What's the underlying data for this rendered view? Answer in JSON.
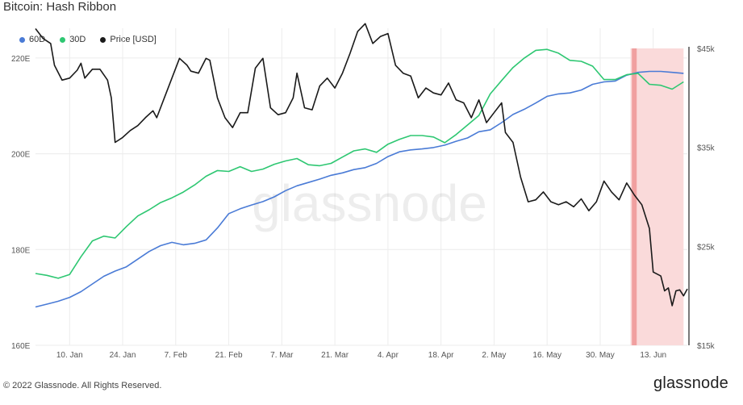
{
  "title": "Bitcoin: Hash Ribbon",
  "footer": {
    "copyright": "© 2022 Glassnode. All Rights Reserved.",
    "brand": "glassnode"
  },
  "watermark": "glassnode",
  "chart_data": {
    "type": "line",
    "title": "Bitcoin: Hash Ribbon",
    "x_start": "2022-01-01",
    "x_end": "2022-06-22",
    "x_ticks": [
      {
        "date": "2022-01-10",
        "label": "10. Jan"
      },
      {
        "date": "2022-01-24",
        "label": "24. Jan"
      },
      {
        "date": "2022-02-07",
        "label": "7. Feb"
      },
      {
        "date": "2022-02-21",
        "label": "21. Feb"
      },
      {
        "date": "2022-03-07",
        "label": "7. Mar"
      },
      {
        "date": "2022-03-21",
        "label": "21. Mar"
      },
      {
        "date": "2022-04-04",
        "label": "4. Apr"
      },
      {
        "date": "2022-04-18",
        "label": "18. Apr"
      },
      {
        "date": "2022-05-02",
        "label": "2. May"
      },
      {
        "date": "2022-05-16",
        "label": "16. May"
      },
      {
        "date": "2022-05-30",
        "label": "30. May"
      },
      {
        "date": "2022-06-13",
        "label": "13. Jun"
      }
    ],
    "y_left": {
      "ylim": [
        160,
        222
      ],
      "ticks": [
        {
          "v": 160,
          "label": "160E"
        },
        {
          "v": 180,
          "label": "180E"
        },
        {
          "v": 200,
          "label": "200E"
        },
        {
          "v": 220,
          "label": "220E"
        }
      ]
    },
    "y_right": {
      "ylim": [
        15,
        45
      ],
      "ticks": [
        {
          "v": 15,
          "label": "$15k"
        },
        {
          "v": 25,
          "label": "$25k"
        },
        {
          "v": 35,
          "label": "$35k"
        },
        {
          "v": 45,
          "label": "$45k"
        }
      ]
    },
    "grid": true,
    "legend_position": "top-left",
    "capitulation_band": {
      "start": "2022-06-07",
      "end": "2022-06-21",
      "color": "#fadada"
    },
    "capitulation_line": {
      "date": "2022-06-08",
      "color": "#f0a0a0"
    },
    "series": [
      {
        "name": "60D",
        "axis": "left",
        "color": "#4a7bd6",
        "points": [
          [
            "2022-01-01",
            168.0
          ],
          [
            "2022-01-04",
            168.6
          ],
          [
            "2022-01-07",
            169.2
          ],
          [
            "2022-01-10",
            170.0
          ],
          [
            "2022-01-13",
            171.2
          ],
          [
            "2022-01-16",
            172.8
          ],
          [
            "2022-01-19",
            174.4
          ],
          [
            "2022-01-22",
            175.5
          ],
          [
            "2022-01-25",
            176.4
          ],
          [
            "2022-01-28",
            178.0
          ],
          [
            "2022-01-31",
            179.6
          ],
          [
            "2022-02-03",
            180.8
          ],
          [
            "2022-02-06",
            181.5
          ],
          [
            "2022-02-09",
            181.0
          ],
          [
            "2022-02-12",
            181.3
          ],
          [
            "2022-02-15",
            182.0
          ],
          [
            "2022-02-18",
            184.5
          ],
          [
            "2022-02-21",
            187.5
          ],
          [
            "2022-02-24",
            188.5
          ],
          [
            "2022-02-27",
            189.3
          ],
          [
            "2022-03-02",
            190.0
          ],
          [
            "2022-03-05",
            191.0
          ],
          [
            "2022-03-08",
            192.3
          ],
          [
            "2022-03-11",
            193.3
          ],
          [
            "2022-03-14",
            194.0
          ],
          [
            "2022-03-17",
            194.7
          ],
          [
            "2022-03-20",
            195.5
          ],
          [
            "2022-03-23",
            196.0
          ],
          [
            "2022-03-26",
            196.7
          ],
          [
            "2022-03-29",
            197.1
          ],
          [
            "2022-04-01",
            198.0
          ],
          [
            "2022-04-04",
            199.4
          ],
          [
            "2022-04-07",
            200.4
          ],
          [
            "2022-04-10",
            200.8
          ],
          [
            "2022-04-13",
            201.0
          ],
          [
            "2022-04-16",
            201.3
          ],
          [
            "2022-04-19",
            201.8
          ],
          [
            "2022-04-22",
            202.6
          ],
          [
            "2022-04-25",
            203.3
          ],
          [
            "2022-04-28",
            204.6
          ],
          [
            "2022-05-01",
            205.0
          ],
          [
            "2022-05-04",
            206.5
          ],
          [
            "2022-05-07",
            208.2
          ],
          [
            "2022-05-10",
            209.3
          ],
          [
            "2022-05-13",
            210.6
          ],
          [
            "2022-05-16",
            212.0
          ],
          [
            "2022-05-19",
            212.5
          ],
          [
            "2022-05-22",
            212.7
          ],
          [
            "2022-05-25",
            213.3
          ],
          [
            "2022-05-28",
            214.5
          ],
          [
            "2022-05-31",
            215.0
          ],
          [
            "2022-06-03",
            215.2
          ],
          [
            "2022-06-06",
            216.4
          ],
          [
            "2022-06-09",
            217.0
          ],
          [
            "2022-06-12",
            217.2
          ],
          [
            "2022-06-15",
            217.2
          ],
          [
            "2022-06-18",
            217.0
          ],
          [
            "2022-06-21",
            216.8
          ]
        ]
      },
      {
        "name": "30D",
        "axis": "left",
        "color": "#2ec772",
        "points": [
          [
            "2022-01-01",
            175.0
          ],
          [
            "2022-01-04",
            174.6
          ],
          [
            "2022-01-07",
            174.0
          ],
          [
            "2022-01-10",
            174.8
          ],
          [
            "2022-01-13",
            178.5
          ],
          [
            "2022-01-16",
            181.8
          ],
          [
            "2022-01-19",
            182.8
          ],
          [
            "2022-01-22",
            182.4
          ],
          [
            "2022-01-25",
            184.8
          ],
          [
            "2022-01-28",
            187.0
          ],
          [
            "2022-01-31",
            188.3
          ],
          [
            "2022-02-03",
            189.8
          ],
          [
            "2022-02-06",
            190.8
          ],
          [
            "2022-02-09",
            192.0
          ],
          [
            "2022-02-12",
            193.5
          ],
          [
            "2022-02-15",
            195.3
          ],
          [
            "2022-02-18",
            196.5
          ],
          [
            "2022-02-21",
            196.3
          ],
          [
            "2022-02-24",
            197.3
          ],
          [
            "2022-02-27",
            196.3
          ],
          [
            "2022-03-02",
            196.8
          ],
          [
            "2022-03-05",
            197.8
          ],
          [
            "2022-03-08",
            198.5
          ],
          [
            "2022-03-11",
            199.0
          ],
          [
            "2022-03-14",
            197.7
          ],
          [
            "2022-03-17",
            197.5
          ],
          [
            "2022-03-20",
            198.0
          ],
          [
            "2022-03-23",
            199.3
          ],
          [
            "2022-03-26",
            200.6
          ],
          [
            "2022-03-29",
            201.0
          ],
          [
            "2022-04-01",
            200.3
          ],
          [
            "2022-04-04",
            202.0
          ],
          [
            "2022-04-07",
            203.0
          ],
          [
            "2022-04-10",
            203.8
          ],
          [
            "2022-04-13",
            203.8
          ],
          [
            "2022-04-16",
            203.5
          ],
          [
            "2022-04-19",
            202.3
          ],
          [
            "2022-04-22",
            204.0
          ],
          [
            "2022-04-25",
            206.0
          ],
          [
            "2022-04-28",
            208.0
          ],
          [
            "2022-05-01",
            212.5
          ],
          [
            "2022-05-04",
            215.3
          ],
          [
            "2022-05-07",
            218.0
          ],
          [
            "2022-05-10",
            220.0
          ],
          [
            "2022-05-13",
            221.6
          ],
          [
            "2022-05-16",
            221.8
          ],
          [
            "2022-05-19",
            221.0
          ],
          [
            "2022-05-22",
            219.5
          ],
          [
            "2022-05-25",
            219.3
          ],
          [
            "2022-05-28",
            218.3
          ],
          [
            "2022-05-31",
            215.5
          ],
          [
            "2022-06-03",
            215.5
          ],
          [
            "2022-06-06",
            216.5
          ],
          [
            "2022-06-09",
            216.8
          ],
          [
            "2022-06-12",
            214.5
          ],
          [
            "2022-06-15",
            214.3
          ],
          [
            "2022-06-18",
            213.5
          ],
          [
            "2022-06-21",
            215.0
          ]
        ]
      },
      {
        "name": "Price [USD]",
        "axis": "right",
        "color": "#1a1a1a",
        "points": [
          [
            "2022-01-01",
            47.0
          ],
          [
            "2022-01-02",
            46.5
          ],
          [
            "2022-01-03",
            46.0
          ],
          [
            "2022-01-05",
            45.5
          ],
          [
            "2022-01-06",
            43.3
          ],
          [
            "2022-01-08",
            41.8
          ],
          [
            "2022-01-10",
            42.0
          ],
          [
            "2022-01-12",
            42.8
          ],
          [
            "2022-01-13",
            43.5
          ],
          [
            "2022-01-14",
            42.0
          ],
          [
            "2022-01-16",
            42.9
          ],
          [
            "2022-01-18",
            42.9
          ],
          [
            "2022-01-20",
            41.8
          ],
          [
            "2022-01-21",
            40.0
          ],
          [
            "2022-01-22",
            35.5
          ],
          [
            "2022-01-24",
            36.0
          ],
          [
            "2022-01-26",
            36.7
          ],
          [
            "2022-01-28",
            37.2
          ],
          [
            "2022-01-30",
            38.0
          ],
          [
            "2022-02-01",
            38.7
          ],
          [
            "2022-02-02",
            38.0
          ],
          [
            "2022-02-04",
            40.0
          ],
          [
            "2022-02-06",
            42.0
          ],
          [
            "2022-02-08",
            44.0
          ],
          [
            "2022-02-10",
            43.3
          ],
          [
            "2022-02-11",
            42.7
          ],
          [
            "2022-02-13",
            42.5
          ],
          [
            "2022-02-15",
            44.0
          ],
          [
            "2022-02-16",
            43.8
          ],
          [
            "2022-02-18",
            40.0
          ],
          [
            "2022-02-20",
            38.0
          ],
          [
            "2022-02-22",
            37.0
          ],
          [
            "2022-02-24",
            38.5
          ],
          [
            "2022-02-26",
            38.5
          ],
          [
            "2022-02-28",
            43.0
          ],
          [
            "2022-03-02",
            44.0
          ],
          [
            "2022-03-04",
            39.0
          ],
          [
            "2022-03-06",
            38.3
          ],
          [
            "2022-03-08",
            38.5
          ],
          [
            "2022-03-10",
            40.0
          ],
          [
            "2022-03-11",
            42.5
          ],
          [
            "2022-03-13",
            39.0
          ],
          [
            "2022-03-15",
            38.8
          ],
          [
            "2022-03-17",
            41.2
          ],
          [
            "2022-03-19",
            42.0
          ],
          [
            "2022-03-21",
            41.0
          ],
          [
            "2022-03-23",
            42.5
          ],
          [
            "2022-03-25",
            44.5
          ],
          [
            "2022-03-27",
            46.7
          ],
          [
            "2022-03-29",
            47.5
          ],
          [
            "2022-03-31",
            45.5
          ],
          [
            "2022-04-02",
            46.2
          ],
          [
            "2022-04-04",
            46.5
          ],
          [
            "2022-04-06",
            43.3
          ],
          [
            "2022-04-08",
            42.5
          ],
          [
            "2022-04-10",
            42.2
          ],
          [
            "2022-04-12",
            40.0
          ],
          [
            "2022-04-14",
            41.0
          ],
          [
            "2022-04-16",
            40.5
          ],
          [
            "2022-04-18",
            40.3
          ],
          [
            "2022-04-20",
            41.5
          ],
          [
            "2022-04-22",
            39.8
          ],
          [
            "2022-04-24",
            39.5
          ],
          [
            "2022-04-26",
            38.0
          ],
          [
            "2022-04-28",
            39.8
          ],
          [
            "2022-04-30",
            37.5
          ],
          [
            "2022-05-02",
            38.5
          ],
          [
            "2022-05-04",
            39.5
          ],
          [
            "2022-05-05",
            36.5
          ],
          [
            "2022-05-07",
            35.5
          ],
          [
            "2022-05-09",
            32.0
          ],
          [
            "2022-05-11",
            29.5
          ],
          [
            "2022-05-13",
            29.7
          ],
          [
            "2022-05-15",
            30.5
          ],
          [
            "2022-05-17",
            29.5
          ],
          [
            "2022-05-19",
            29.2
          ],
          [
            "2022-05-21",
            29.5
          ],
          [
            "2022-05-23",
            29.0
          ],
          [
            "2022-05-25",
            29.8
          ],
          [
            "2022-05-27",
            28.6
          ],
          [
            "2022-05-29",
            29.5
          ],
          [
            "2022-05-31",
            31.6
          ],
          [
            "2022-06-02",
            30.5
          ],
          [
            "2022-06-04",
            29.7
          ],
          [
            "2022-06-06",
            31.4
          ],
          [
            "2022-06-08",
            30.2
          ],
          [
            "2022-06-10",
            29.2
          ],
          [
            "2022-06-12",
            26.8
          ],
          [
            "2022-06-13",
            22.4
          ],
          [
            "2022-06-15",
            22.0
          ],
          [
            "2022-06-16",
            20.5
          ],
          [
            "2022-06-17",
            20.8
          ],
          [
            "2022-06-18",
            19.0
          ],
          [
            "2022-06-19",
            20.5
          ],
          [
            "2022-06-20",
            20.6
          ],
          [
            "2022-06-21",
            20.0
          ],
          [
            "2022-06-22",
            20.7
          ]
        ]
      }
    ]
  }
}
